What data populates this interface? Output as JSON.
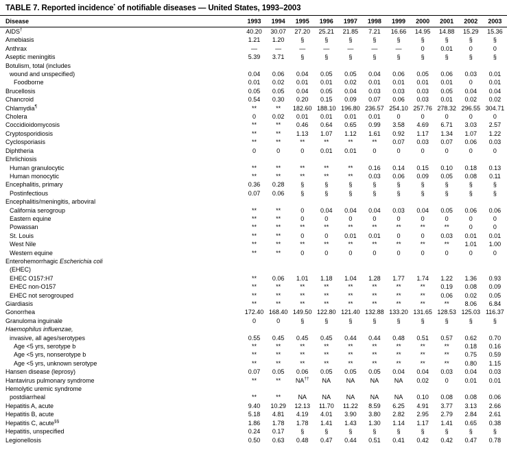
{
  "title_segments": [
    {
      "t": "TABLE 7. Reported incidence"
    },
    {
      "t": "*",
      "sup": true
    },
    {
      "t": " of notifiable diseases — United States, 1993–2003"
    }
  ],
  "table": {
    "columns": [
      "Disease",
      "1993",
      "1994",
      "1995",
      "1996",
      "1997",
      "1998",
      "1999",
      "2000",
      "2001",
      "2002",
      "2003"
    ],
    "rows": [
      {
        "label": [
          {
            "t": "AIDS"
          },
          {
            "t": "†",
            "sup": true
          }
        ],
        "indent": 0,
        "values": [
          "40.20",
          "30.07",
          "27.20",
          "25.21",
          "21.85",
          "7.21",
          "16.66",
          "14.95",
          "14.88",
          "15.29",
          "15.36"
        ]
      },
      {
        "label": "Amebiasis",
        "indent": 0,
        "values": [
          "1.21",
          "1.20",
          "§",
          "§",
          "§",
          "§",
          "§",
          "§",
          "§",
          "§",
          "§"
        ]
      },
      {
        "label": "Anthrax",
        "indent": 0,
        "values": [
          "—",
          "—",
          "—",
          "—",
          "—",
          "—",
          "—",
          "0",
          "0.01",
          "0",
          "0"
        ]
      },
      {
        "label": "Aseptic meningitis",
        "indent": 0,
        "values": [
          "5.39",
          "3.71",
          "§",
          "§",
          "§",
          "§",
          "§",
          "§",
          "§",
          "§",
          "§"
        ]
      },
      {
        "label": "Botulism, total (includes",
        "indent": 0,
        "values": []
      },
      {
        "label": "wound and unspecified)",
        "indent": 1,
        "values": [
          "0.04",
          "0.06",
          "0.04",
          "0.05",
          "0.05",
          "0.04",
          "0.06",
          "0.05",
          "0.06",
          "0.03",
          "0.01"
        ]
      },
      {
        "label": "Foodborne",
        "indent": 2,
        "values": [
          "0.01",
          "0.02",
          "0.01",
          "0.01",
          "0.02",
          "0.01",
          "0.01",
          "0.01",
          "0.01",
          "0",
          "0.01"
        ]
      },
      {
        "label": "Brucellosis",
        "indent": 0,
        "values": [
          "0.05",
          "0.05",
          "0.04",
          "0.05",
          "0.04",
          "0.03",
          "0.03",
          "0.03",
          "0.05",
          "0.04",
          "0.04"
        ]
      },
      {
        "label": "Chancroid",
        "indent": 0,
        "values": [
          "0.54",
          "0.30",
          "0.20",
          "0.15",
          "0.09",
          "0.07",
          "0.06",
          "0.03",
          "0.01",
          "0.02",
          "0.02"
        ]
      },
      {
        "label": [
          {
            "t": "Chlamydia"
          },
          {
            "t": "¶",
            "sup": true
          }
        ],
        "indent": 0,
        "values": [
          "**",
          "**",
          "182.60",
          "188.10",
          "196.80",
          "236.57",
          "254.10",
          "257.76",
          "278.32",
          "296.55",
          "304.71"
        ]
      },
      {
        "label": "Cholera",
        "indent": 0,
        "values": [
          "0",
          "0.02",
          "0.01",
          "0.01",
          "0.01",
          "0.01",
          "0",
          "0",
          "0",
          "0",
          "0"
        ]
      },
      {
        "label": "Coccidioidomycosis",
        "indent": 0,
        "values": [
          "**",
          "**",
          "0.46",
          "0.64",
          "0.65",
          "0.99",
          "3.58",
          "4.69",
          "6.71",
          "3.03",
          "2.57"
        ]
      },
      {
        "label": "Cryptosporidiosis",
        "indent": 0,
        "values": [
          "**",
          "**",
          "1.13",
          "1.07",
          "1.12",
          "1.61",
          "0.92",
          "1.17",
          "1.34",
          "1.07",
          "1.22"
        ]
      },
      {
        "label": "Cyclosporiasis",
        "indent": 0,
        "values": [
          "**",
          "**",
          "**",
          "**",
          "**",
          "**",
          "0.07",
          "0.03",
          "0.07",
          "0.06",
          "0.03"
        ]
      },
      {
        "label": "Diphtheria",
        "indent": 0,
        "values": [
          "0",
          "0",
          "0",
          "0.01",
          "0.01",
          "0",
          "0",
          "0",
          "0",
          "0",
          "0"
        ]
      },
      {
        "label": "Ehrlichiosis",
        "indent": 0,
        "values": []
      },
      {
        "label": "Human granulocytic",
        "indent": 1,
        "values": [
          "**",
          "**",
          "**",
          "**",
          "**",
          "0.16",
          "0.14",
          "0.15",
          "0.10",
          "0.18",
          "0.13"
        ]
      },
      {
        "label": "Human monocytic",
        "indent": 1,
        "values": [
          "**",
          "**",
          "**",
          "**",
          "**",
          "0.03",
          "0.06",
          "0.09",
          "0.05",
          "0.08",
          "0.11"
        ]
      },
      {
        "label": "Encephalitis, primary",
        "indent": 0,
        "values": [
          "0.36",
          "0.28",
          "§",
          "§",
          "§",
          "§",
          "§",
          "§",
          "§",
          "§",
          "§"
        ]
      },
      {
        "label": "Postinfectious",
        "indent": 1,
        "values": [
          "0.07",
          "0.06",
          "§",
          "§",
          "§",
          "§",
          "§",
          "§",
          "§",
          "§",
          "§"
        ]
      },
      {
        "label": "Encephalitis/meningitis, arboviral",
        "indent": 0,
        "values": []
      },
      {
        "label": "California serogroup",
        "indent": 1,
        "values": [
          "**",
          "**",
          "0",
          "0.04",
          "0.04",
          "0.04",
          "0.03",
          "0.04",
          "0.05",
          "0.06",
          "0.06"
        ]
      },
      {
        "label": "Eastern equine",
        "indent": 1,
        "values": [
          "**",
          "**",
          "0",
          "0",
          "0",
          "0",
          "0",
          "0",
          "0",
          "0",
          "0"
        ]
      },
      {
        "label": "Powassan",
        "indent": 1,
        "values": [
          "**",
          "**",
          "**",
          "**",
          "**",
          "**",
          "**",
          "**",
          "**",
          "0",
          "0"
        ]
      },
      {
        "label": "St. Louis",
        "indent": 1,
        "values": [
          "**",
          "**",
          "0",
          "0",
          "0.01",
          "0.01",
          "0",
          "0",
          "0.03",
          "0.01",
          "0.01"
        ]
      },
      {
        "label": "West Nile",
        "indent": 1,
        "values": [
          "**",
          "**",
          "**",
          "**",
          "**",
          "**",
          "**",
          "**",
          "**",
          "1.01",
          "1.00"
        ]
      },
      {
        "label": "Western equine",
        "indent": 1,
        "values": [
          "**",
          "**",
          "0",
          "0",
          "0",
          "0",
          "0",
          "0",
          "0",
          "0",
          "0"
        ]
      },
      {
        "label": [
          {
            "t": "Enterohemorrhagic "
          },
          {
            "t": "Escherichia coli",
            "i": true
          }
        ],
        "indent": 0,
        "values": []
      },
      {
        "label": "(EHEC)",
        "indent": 1,
        "values": []
      },
      {
        "label": "EHEC O157:H7",
        "indent": 1,
        "values": [
          "**",
          "0.06",
          "1.01",
          "1.18",
          "1.04",
          "1.28",
          "1.77",
          "1.74",
          "1.22",
          "1.36",
          "0.93"
        ]
      },
      {
        "label": "EHEC non-O157",
        "indent": 1,
        "values": [
          "**",
          "**",
          "**",
          "**",
          "**",
          "**",
          "**",
          "**",
          "0.19",
          "0.08",
          "0.09"
        ]
      },
      {
        "label": "EHEC not serogrouped",
        "indent": 1,
        "values": [
          "**",
          "**",
          "**",
          "**",
          "**",
          "**",
          "**",
          "**",
          "0.06",
          "0.02",
          "0.05"
        ]
      },
      {
        "label": "Giardiasis",
        "indent": 0,
        "values": [
          "**",
          "**",
          "**",
          "**",
          "**",
          "**",
          "**",
          "**",
          "**",
          "8.06",
          "6.84"
        ]
      },
      {
        "label": "Gonorrhea",
        "indent": 0,
        "values": [
          "172.40",
          "168.40",
          "149.50",
          "122.80",
          "121.40",
          "132.88",
          "133.20",
          "131.65",
          "128.53",
          "125.03",
          "116.37"
        ]
      },
      {
        "label": "Granuloma inguinale",
        "indent": 0,
        "values": [
          "0",
          "0",
          "§",
          "§",
          "§",
          "§",
          "§",
          "§",
          "§",
          "§",
          "§"
        ]
      },
      {
        "label": [
          {
            "t": "Haemophilus influenzae,",
            "i": true
          }
        ],
        "indent": 0,
        "values": []
      },
      {
        "label": "invasive, all ages/serotypes",
        "indent": 1,
        "values": [
          "0.55",
          "0.45",
          "0.45",
          "0.45",
          "0.44",
          "0.44",
          "0.48",
          "0.51",
          "0.57",
          "0.62",
          "0.70"
        ]
      },
      {
        "label": "Age <5 yrs, serotype b",
        "indent": 2,
        "values": [
          "**",
          "**",
          "**",
          "**",
          "**",
          "**",
          "**",
          "**",
          "**",
          "0.18",
          "0.16"
        ]
      },
      {
        "label": "Age <5 yrs, nonserotype b",
        "indent": 2,
        "values": [
          "**",
          "**",
          "**",
          "**",
          "**",
          "**",
          "**",
          "**",
          "**",
          "0.75",
          "0.59"
        ]
      },
      {
        "label": "Age <5 yrs, unknown serotype",
        "indent": 2,
        "values": [
          "**",
          "**",
          "**",
          "**",
          "**",
          "**",
          "**",
          "**",
          "**",
          "0.80",
          "1.15"
        ]
      },
      {
        "label": "Hansen disease (leprosy)",
        "indent": 0,
        "values": [
          "0.07",
          "0.05",
          "0.06",
          "0.05",
          "0.05",
          "0.05",
          "0.04",
          "0.04",
          "0.03",
          "0.04",
          "0.03"
        ]
      },
      {
        "label": "Hantavirus pulmonary syndrome",
        "indent": 0,
        "values": [
          "**",
          "**",
          [
            {
              "t": "NA"
            },
            {
              "t": "††",
              "sup": true
            }
          ],
          "NA",
          "NA",
          "NA",
          "NA",
          "0.02",
          "0",
          "0.01",
          "0.01"
        ]
      },
      {
        "label": "Hemolytic uremic syndrome",
        "indent": 0,
        "values": []
      },
      {
        "label": "postdiarrheal",
        "indent": 1,
        "values": [
          "**",
          "**",
          "NA",
          "NA",
          "NA",
          "NA",
          "NA",
          "0.10",
          "0.08",
          "0.08",
          "0.06"
        ]
      },
      {
        "label": "Hepatitis A, acute",
        "indent": 0,
        "values": [
          "9.40",
          "10.29",
          "12.13",
          "11.70",
          "11.22",
          "8.59",
          "6.25",
          "4.91",
          "3.77",
          "3.13",
          "2.66"
        ]
      },
      {
        "label": "Hepatitis B, acute",
        "indent": 0,
        "values": [
          "5.18",
          "4.81",
          "4.19",
          "4.01",
          "3.90",
          "3.80",
          "2.82",
          "2.95",
          "2.79",
          "2.84",
          "2.61"
        ]
      },
      {
        "label": [
          {
            "t": "Hepatitis C, acute"
          },
          {
            "t": "§§",
            "sup": true
          }
        ],
        "indent": 0,
        "values": [
          "1.86",
          "1.78",
          "1.78",
          "1.41",
          "1.43",
          "1.30",
          "1.14",
          "1.17",
          "1.41",
          "0.65",
          "0.38"
        ]
      },
      {
        "label": "Hepatitis, unspecified",
        "indent": 0,
        "values": [
          "0.24",
          "0.17",
          "§",
          "§",
          "§",
          "§",
          "§",
          "§",
          "§",
          "§",
          "§"
        ]
      },
      {
        "label": "Legionellosis",
        "indent": 0,
        "values": [
          "0.50",
          "0.63",
          "0.48",
          "0.47",
          "0.44",
          "0.51",
          "0.41",
          "0.42",
          "0.42",
          "0.47",
          "0.78"
        ]
      }
    ]
  }
}
